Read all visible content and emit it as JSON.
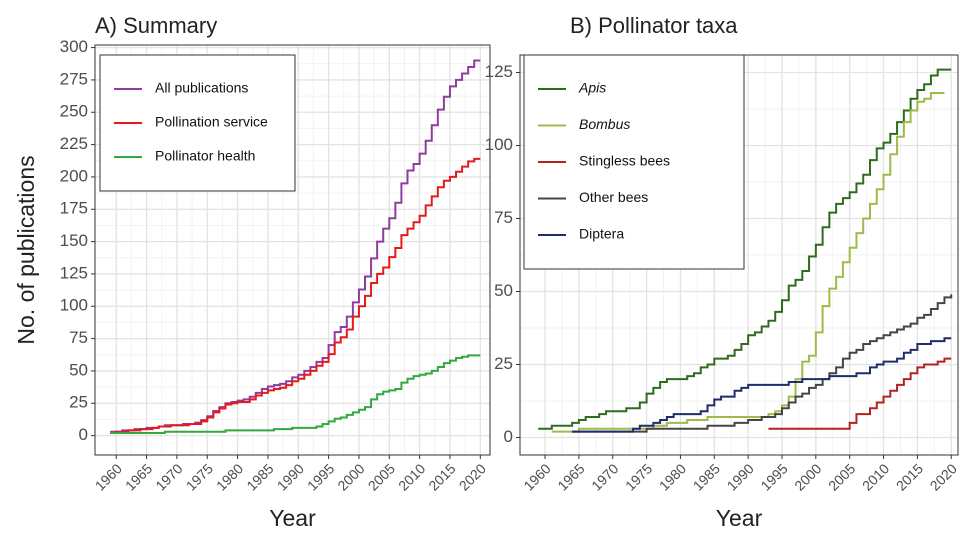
{
  "chart_data": [
    {
      "type": "line",
      "drawstyle": "steps",
      "title": "A) Summary",
      "x_label": "Year",
      "y_label": "No. of publications",
      "x": [
        1959,
        1960,
        1961,
        1962,
        1963,
        1964,
        1965,
        1966,
        1967,
        1968,
        1969,
        1970,
        1971,
        1972,
        1973,
        1974,
        1975,
        1976,
        1977,
        1978,
        1979,
        1980,
        1981,
        1982,
        1983,
        1984,
        1985,
        1986,
        1987,
        1988,
        1989,
        1990,
        1991,
        1992,
        1993,
        1994,
        1995,
        1996,
        1997,
        1998,
        1999,
        2000,
        2001,
        2002,
        2003,
        2004,
        2005,
        2006,
        2007,
        2008,
        2009,
        2010,
        2011,
        2012,
        2013,
        2014,
        2015,
        2016,
        2017,
        2018,
        2019,
        2020
      ],
      "series": [
        {
          "name": "All publications",
          "color": "#8e3c9e",
          "values": [
            3,
            3,
            4,
            4,
            5,
            5,
            6,
            6,
            7,
            8,
            8,
            8,
            9,
            9,
            10,
            12,
            15,
            19,
            22,
            25,
            26,
            27,
            28,
            30,
            33,
            36,
            38,
            39,
            40,
            42,
            45,
            47,
            50,
            53,
            57,
            60,
            70,
            80,
            84,
            92,
            103,
            113,
            123,
            137,
            150,
            160,
            168,
            180,
            195,
            205,
            210,
            218,
            228,
            240,
            252,
            262,
            270,
            275,
            280,
            285,
            290,
            290
          ]
        },
        {
          "name": "Pollination service",
          "color": "#e41a1c",
          "values": [
            2,
            3,
            3,
            4,
            4,
            5,
            5,
            6,
            7,
            7,
            8,
            8,
            8,
            9,
            9,
            11,
            14,
            18,
            21,
            24,
            25,
            26,
            26,
            28,
            31,
            33,
            35,
            36,
            37,
            39,
            42,
            44,
            47,
            50,
            54,
            57,
            63,
            72,
            76,
            82,
            92,
            100,
            108,
            118,
            125,
            130,
            138,
            145,
            155,
            160,
            165,
            170,
            178,
            185,
            192,
            197,
            200,
            204,
            208,
            212,
            214,
            214
          ]
        },
        {
          "name": "Pollinator health",
          "color": "#33a840",
          "values": [
            2,
            2,
            2,
            2,
            2,
            2,
            2,
            2,
            2,
            3,
            3,
            3,
            3,
            3,
            3,
            3,
            3,
            3,
            3,
            4,
            4,
            4,
            4,
            4,
            4,
            4,
            4,
            5,
            5,
            5,
            6,
            6,
            6,
            6,
            7,
            9,
            11,
            13,
            14,
            16,
            18,
            20,
            22,
            28,
            32,
            34,
            35,
            36,
            41,
            44,
            46,
            47,
            48,
            50,
            53,
            56,
            58,
            60,
            61,
            62,
            62,
            62
          ]
        }
      ],
      "xlim": [
        1956.5,
        2021.6
      ],
      "xticks": [
        1960,
        1965,
        1970,
        1975,
        1980,
        1985,
        1990,
        1995,
        2000,
        2005,
        2010,
        2015,
        2020
      ],
      "ylim": [
        -15,
        302
      ],
      "yticks": [
        0,
        25,
        50,
        75,
        100,
        125,
        150,
        175,
        200,
        225,
        250,
        275,
        300
      ],
      "grid": true,
      "legend": "top-left"
    },
    {
      "type": "line",
      "drawstyle": "steps",
      "title": "B) Pollinator taxa",
      "x_label": "Year",
      "x": [
        1959,
        1960,
        1961,
        1962,
        1963,
        1964,
        1965,
        1966,
        1967,
        1968,
        1969,
        1970,
        1971,
        1972,
        1973,
        1974,
        1975,
        1976,
        1977,
        1978,
        1979,
        1980,
        1981,
        1982,
        1983,
        1984,
        1985,
        1986,
        1987,
        1988,
        1989,
        1990,
        1991,
        1992,
        1993,
        1994,
        1995,
        1996,
        1997,
        1998,
        1999,
        2000,
        2001,
        2002,
        2003,
        2004,
        2005,
        2006,
        2007,
        2008,
        2009,
        2010,
        2011,
        2012,
        2013,
        2014,
        2015,
        2016,
        2017,
        2018,
        2019,
        2020
      ],
      "series": [
        {
          "name": "Apis",
          "italic": true,
          "color": "#2e6b1e",
          "values": [
            3,
            3,
            4,
            4,
            4,
            5,
            6,
            7,
            7,
            8,
            9,
            9,
            9,
            10,
            10,
            12,
            15,
            17,
            19,
            20,
            20,
            20,
            21,
            22,
            24,
            25,
            27,
            27,
            28,
            30,
            32,
            35,
            36,
            38,
            40,
            43,
            47,
            52,
            54,
            57,
            62,
            66,
            72,
            77,
            80,
            82,
            84,
            87,
            90,
            95,
            99,
            101,
            104,
            108,
            112,
            116,
            119,
            121,
            124,
            126,
            126,
            126
          ]
        },
        {
          "name": "Bombus",
          "italic": true,
          "color": "#9dbb48",
          "values": [
            null,
            null,
            2,
            2,
            2,
            2,
            3,
            3,
            3,
            3,
            3,
            3,
            3,
            3,
            3,
            3,
            3,
            4,
            4,
            5,
            5,
            5,
            6,
            6,
            6,
            7,
            7,
            7,
            7,
            7,
            7,
            7,
            7,
            7,
            8,
            9,
            11,
            14,
            20,
            26,
            28,
            36,
            45,
            51,
            55,
            60,
            65,
            70,
            75,
            80,
            85,
            90,
            97,
            103,
            108,
            112,
            115,
            116,
            118,
            118,
            118,
            null
          ]
        },
        {
          "name": "Stingless bees",
          "color": "#b22222",
          "values": [
            null,
            null,
            null,
            null,
            null,
            null,
            null,
            null,
            null,
            null,
            null,
            null,
            null,
            null,
            null,
            null,
            null,
            null,
            null,
            null,
            null,
            null,
            null,
            null,
            null,
            null,
            null,
            null,
            null,
            null,
            null,
            null,
            null,
            null,
            3,
            3,
            3,
            3,
            3,
            3,
            3,
            3,
            3,
            3,
            3,
            3,
            5,
            8,
            8,
            10,
            12,
            14,
            16,
            18,
            20,
            22,
            24,
            25,
            25,
            26,
            27,
            27
          ]
        },
        {
          "name": "Other bees",
          "color": "#454545",
          "values": [
            null,
            null,
            null,
            null,
            null,
            2,
            2,
            2,
            2,
            2,
            2,
            2,
            2,
            2,
            2,
            2,
            3,
            3,
            3,
            3,
            3,
            3,
            3,
            3,
            3,
            4,
            4,
            4,
            4,
            5,
            5,
            6,
            6,
            7,
            7,
            8,
            10,
            12,
            14,
            15,
            17,
            18,
            20,
            22,
            24,
            27,
            29,
            30,
            32,
            33,
            34,
            35,
            36,
            37,
            38,
            39,
            41,
            42,
            44,
            46,
            48,
            49
          ]
        },
        {
          "name": "Diptera",
          "color": "#1f2d6b",
          "values": [
            null,
            null,
            null,
            null,
            null,
            2,
            2,
            2,
            2,
            2,
            2,
            2,
            2,
            2,
            3,
            4,
            4,
            5,
            6,
            7,
            8,
            8,
            8,
            8,
            9,
            11,
            13,
            14,
            14,
            16,
            17,
            18,
            18,
            18,
            18,
            18,
            18,
            19,
            19,
            20,
            20,
            20,
            20,
            21,
            21,
            21,
            21,
            22,
            22,
            24,
            25,
            26,
            26,
            27,
            29,
            30,
            32,
            32,
            33,
            33,
            34,
            34
          ]
        }
      ],
      "xlim": [
        1956.3,
        2021
      ],
      "xticks": [
        1960,
        1965,
        1970,
        1975,
        1980,
        1985,
        1990,
        1995,
        2000,
        2005,
        2010,
        2015,
        2020
      ],
      "ylim": [
        -6,
        131
      ],
      "yticks": [
        0,
        25,
        50,
        75,
        100,
        125
      ],
      "grid": true,
      "legend": "top-left"
    }
  ]
}
